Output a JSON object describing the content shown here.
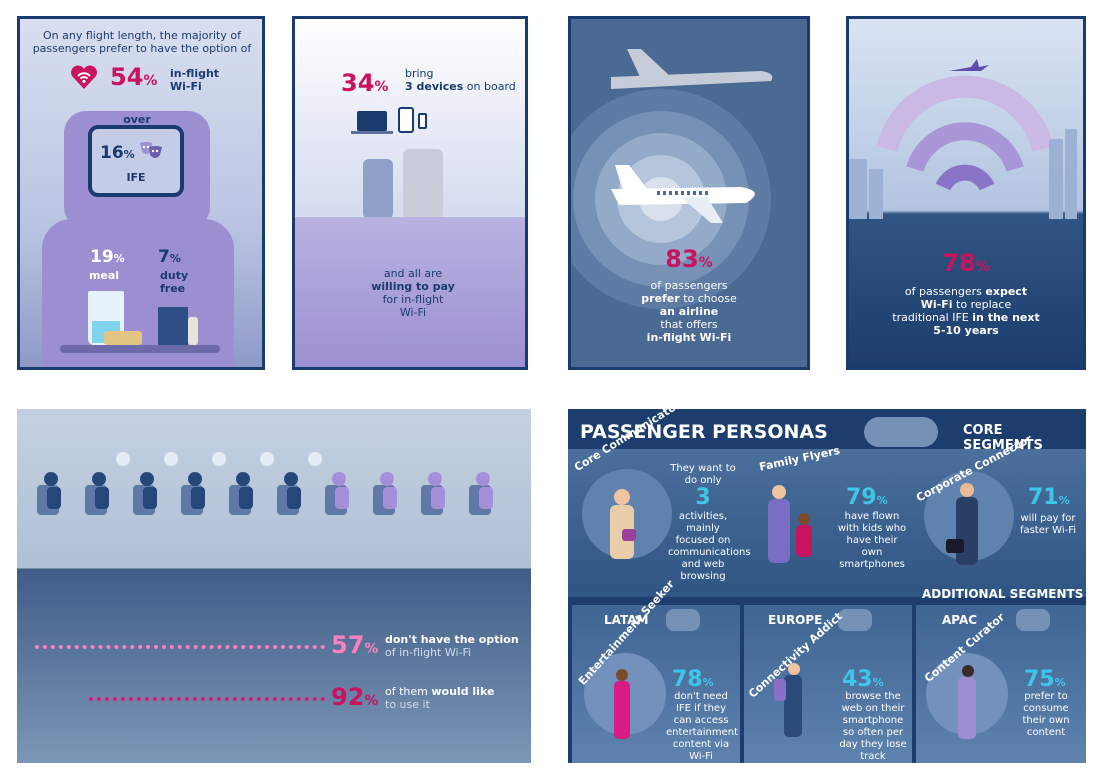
{
  "panel1": {
    "headline": "On any flight length, the majority of passengers prefer to have the option of",
    "wifi_pct": "54",
    "wifi_label_1": "in-flight",
    "wifi_label_2": "Wi-Fi",
    "over": "over",
    "ife_pct": "16",
    "ife_label": "IFE",
    "meal_pct": "19",
    "meal_label": "meal",
    "duty_pct": "7",
    "duty_label_1": "duty",
    "duty_label_2": "free",
    "pct_sign": "%"
  },
  "panel2": {
    "pct": "34",
    "bring": "bring",
    "devices_1": "3 devices",
    "devices_2": "on board",
    "line1": "and all are",
    "line2": "willing to pay",
    "line3": "for in-flight",
    "line4": "Wi-Fi"
  },
  "panel3": {
    "pct": "83",
    "line1": "of passengers",
    "line2": "prefer",
    "line2b": "to choose",
    "line3": "an airline",
    "line4": "that offers",
    "line5": "in-flight Wi-Fi"
  },
  "panel4": {
    "pct": "78",
    "line1a": "of passengers",
    "line1b": "expect",
    "line2a": "Wi-Fi",
    "line2b": "to replace",
    "line3a": "traditional IFE",
    "line3b": "in the next",
    "line4": "5-10 years"
  },
  "panel5": {
    "stat1_pct": "57",
    "stat1_bold": "don't have the option",
    "stat1_rest": "of in-flight Wi-Fi",
    "stat2_pct": "92",
    "stat2_rest": "of them",
    "stat2_bold": "would like",
    "stat2_rest2": "to use it"
  },
  "personas": {
    "title": "PASSENGER PERSONAS",
    "core_segments": "CORE SEGMENTS",
    "additional_segments": "ADDITIONAL SEGMENTS",
    "core": [
      {
        "name": "Core Communicator",
        "pre": "They want to do only",
        "num": "3",
        "post": "activities, mainly focused on communications and web browsing"
      },
      {
        "name": "Family Flyers",
        "pct": "79",
        "text": "have flown with kids who have their own smartphones"
      },
      {
        "name": "Corporate Connector",
        "pct": "71",
        "text": "will pay for faster Wi-Fi"
      }
    ],
    "additional": [
      {
        "region": "LATAM",
        "name": "Entertainment Seeker",
        "pct": "78",
        "text": "don't need IFE if they can access entertainment content via Wi-Fi"
      },
      {
        "region": "EUROPE",
        "name": "Connectivity Addict",
        "pct": "43",
        "text": "browse the web on their smartphone so often per day they lose track"
      },
      {
        "region": "APAC",
        "name": "Content Curator",
        "pct": "75",
        "text": "prefer to consume their own content"
      }
    ]
  },
  "colors": {
    "navy": "#1a3b6e",
    "magenta": "#c8135f",
    "cyan": "#3ec6e8",
    "lavender": "#9b8ed1"
  }
}
